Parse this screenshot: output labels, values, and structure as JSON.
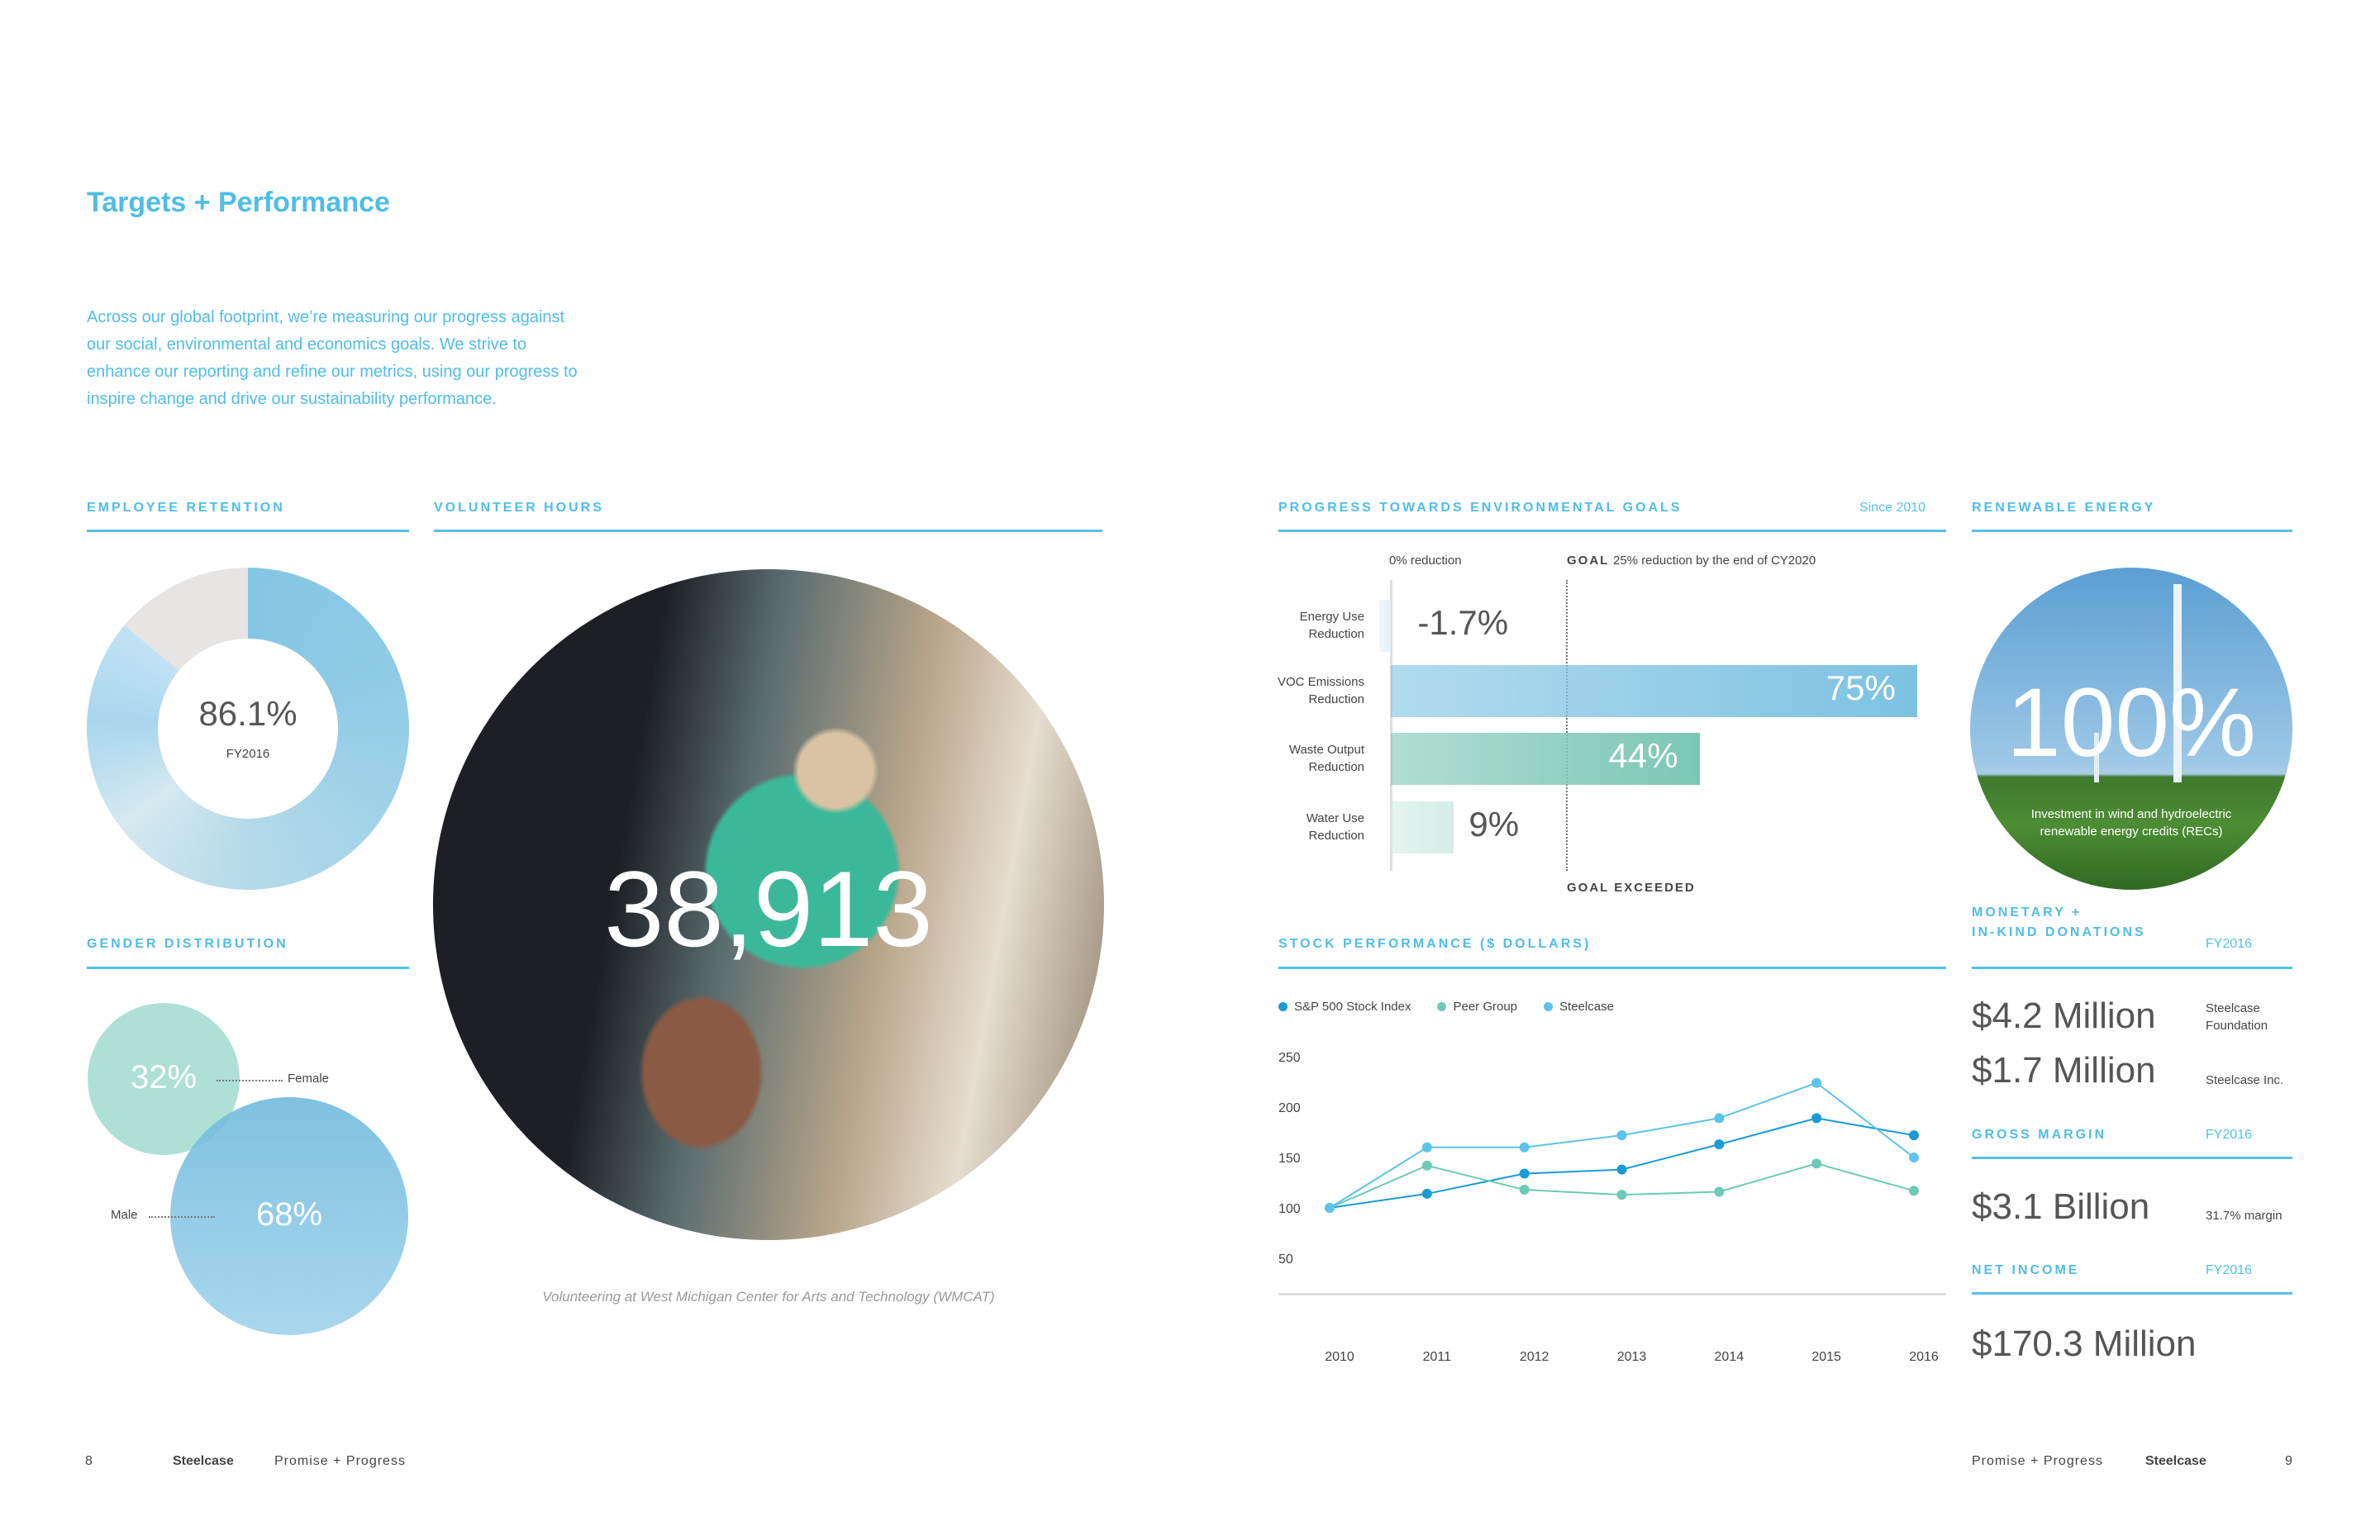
{
  "title": "Targets + Performance",
  "intro": "Across our global footprint, we’re measuring our progress against our social, environmental and economics goals. We strive to enhance our reporting and refine our metrics, using our progress to inspire change and drive our sustainability performance.",
  "colors": {
    "accent": "#4fbde8",
    "sp500": "#1a9ad6",
    "peer": "#6ccab5",
    "steelcase": "#5cc3ea"
  },
  "employee_retention": {
    "heading": "EMPLOYEE RETENTION",
    "value": "86.1%",
    "percent": 86.1,
    "period": "FY2016"
  },
  "gender": {
    "heading": "GENDER DISTRIBUTION",
    "female_value": "32%",
    "female_label": "Female",
    "male_value": "68%",
    "male_label": "Male"
  },
  "volunteer": {
    "heading": "VOLUNTEER HOURS",
    "value": "38,913",
    "caption": "Volunteering at West Michigan Center for Arts and Technology (WMCAT)"
  },
  "env_goals": {
    "heading": "PROGRESS TOWARDS ENVIRONMENTAL GOALS",
    "since": "Since 2010",
    "zero_label": "0% reduction",
    "goal_word": "GOAL",
    "goal_text": "25% reduction by the end of CY2020",
    "goal_value": 25,
    "exceeded": "GOAL EXCEEDED",
    "bars": [
      {
        "label1": "Energy Use",
        "label2": "Reduction",
        "value": -1.7,
        "text": "-1.7%",
        "color": "#e3f0f8"
      },
      {
        "label1": "VOC Emissions",
        "label2": "Reduction",
        "value": 75,
        "text": "75%",
        "color": "#7dc2e2"
      },
      {
        "label1": "Waste Output",
        "label2": "Reduction",
        "value": 44,
        "text": "44%",
        "color": "#7cc7b4"
      },
      {
        "label1": "Water Use",
        "label2": "Reduction",
        "value": 9,
        "text": "9%",
        "color": "#d4ede6"
      }
    ]
  },
  "chart_data": {
    "type": "line",
    "title": "STOCK PERFORMANCE ($ DOLLARS)",
    "x": [
      "2010",
      "2011",
      "2012",
      "2013",
      "2014",
      "2015",
      "2016"
    ],
    "yticks": [
      "250",
      "200",
      "150",
      "100",
      "50"
    ],
    "ylim": [
      50,
      250
    ],
    "legend": "top-left",
    "series": [
      {
        "name": "S&P 500 Stock Index",
        "values": [
          100,
          114,
          134,
          138,
          163,
          189,
          172
        ]
      },
      {
        "name": "Peer Group",
        "values": [
          100,
          142,
          118,
          113,
          116,
          144,
          117
        ]
      },
      {
        "name": "Steelcase",
        "values": [
          100,
          160,
          160,
          172,
          189,
          224,
          150
        ]
      }
    ]
  },
  "renewable": {
    "heading": "RENEWABLE ENERGY",
    "value": "100%",
    "text": "Investment in wind and hydroelectric renewable energy credits (RECs)"
  },
  "donations": {
    "heading1": "MONETARY +",
    "heading2": "IN-KIND DONATIONS",
    "period": "FY2016",
    "rows": [
      {
        "amount": "$4.2 Million",
        "note": "Steelcase Foundation"
      },
      {
        "amount": "$1.7 Million",
        "note": "Steelcase Inc."
      }
    ]
  },
  "gross_margin": {
    "heading": "GROSS MARGIN",
    "period": "FY2016",
    "amount": "$3.1 Billion",
    "note": "31.7% margin"
  },
  "net_income": {
    "heading": "NET INCOME",
    "period": "FY2016",
    "amount": "$170.3 Million"
  },
  "footer": {
    "left_page": "8",
    "left_brand": "Steelcase",
    "left_pub": "Promise + Progress",
    "right_pub": "Promise + Progress",
    "right_brand": "Steelcase",
    "right_page": "9"
  }
}
